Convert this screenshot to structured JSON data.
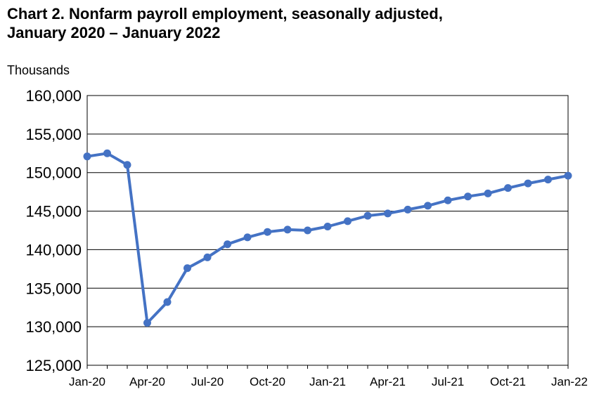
{
  "title": {
    "line1": "Chart 2. Nonfarm payroll employment, seasonally adjusted,",
    "line2": "January 2020 – January 2022"
  },
  "colors": {
    "series": "#4472c4",
    "grid": "#000000",
    "axis": "#000000"
  },
  "chart_data": {
    "type": "line",
    "title": "Chart 2. Nonfarm payroll employment, seasonally adjusted, January 2020 – January 2022",
    "ylabel": "Thousands",
    "xlabel": "",
    "ylim": [
      125000,
      160000
    ],
    "yticks": [
      125000,
      130000,
      135000,
      140000,
      145000,
      150000,
      155000,
      160000
    ],
    "ytick_labels": [
      "125,000",
      "130,000",
      "135,000",
      "140,000",
      "145,000",
      "150,000",
      "155,000",
      "160,000"
    ],
    "x": [
      "Jan-20",
      "Feb-20",
      "Mar-20",
      "Apr-20",
      "May-20",
      "Jun-20",
      "Jul-20",
      "Aug-20",
      "Sep-20",
      "Oct-20",
      "Nov-20",
      "Dec-20",
      "Jan-21",
      "Feb-21",
      "Mar-21",
      "Apr-21",
      "May-21",
      "Jun-21",
      "Jul-21",
      "Aug-21",
      "Sep-21",
      "Oct-21",
      "Nov-21",
      "Dec-21",
      "Jan-22"
    ],
    "xtick_labels": [
      "Jan-20",
      "Apr-20",
      "Jul-20",
      "Oct-20",
      "Jan-21",
      "Apr-21",
      "Jul-21",
      "Oct-21",
      "Jan-22"
    ],
    "grid": true,
    "legend": "none",
    "series": [
      {
        "values": [
          152100,
          152500,
          151000,
          130500,
          133200,
          137600,
          139000,
          140700,
          141600,
          142300,
          142600,
          142500,
          143000,
          143700,
          144400,
          144700,
          145200,
          145700,
          146400,
          146900,
          147300,
          148000,
          148600,
          149100,
          149600
        ]
      }
    ]
  }
}
